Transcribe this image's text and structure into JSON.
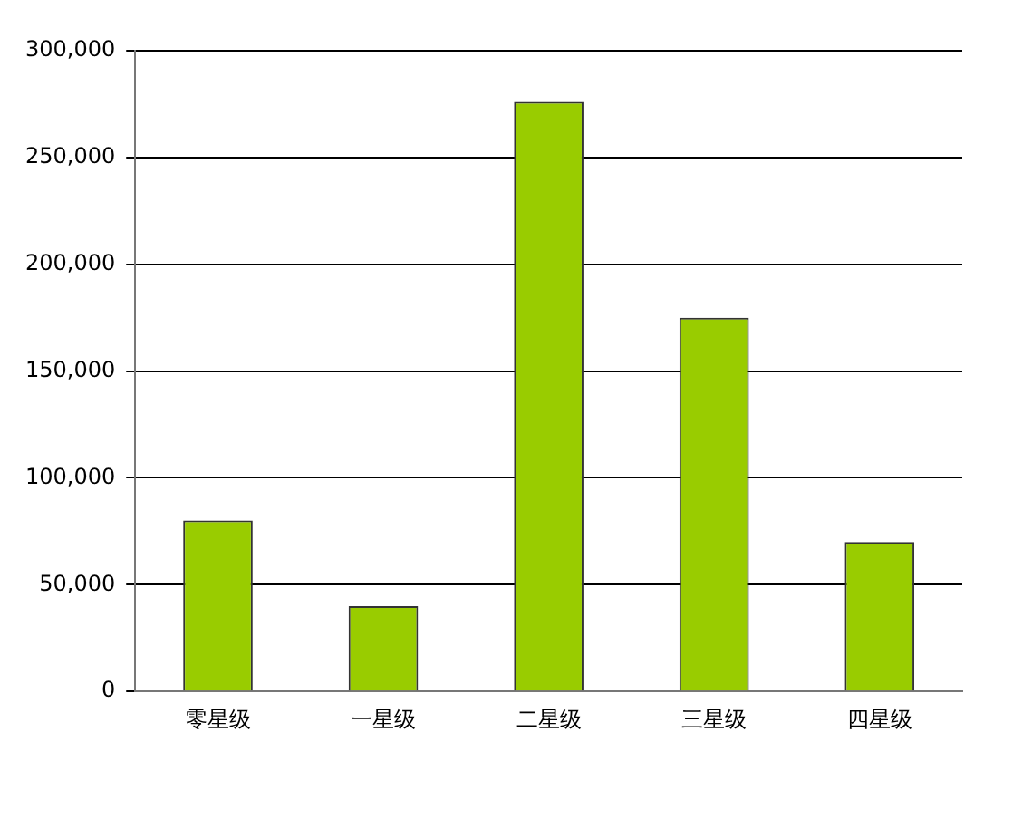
{
  "chart_data": {
    "type": "bar",
    "categories": [
      "零星级",
      "一星级",
      "二星级",
      "三星级",
      "四星级"
    ],
    "values": [
      80000,
      40000,
      276000,
      175000,
      70000
    ],
    "color": "#99cc00",
    "ylim": [
      0,
      300000
    ],
    "yticks": [
      0,
      {
        "value": 50000,
        "label": "50,000"
      },
      {
        "value": 100000,
        "label": "100,000"
      },
      {
        "value": 150000,
        "label": "150,000"
      },
      {
        "value": 200000,
        "label": "200,000"
      },
      {
        "value": 250000,
        "label": "250,000"
      },
      {
        "value": 300000,
        "label": "300,000"
      }
    ],
    "grid": "y",
    "legend": false
  }
}
